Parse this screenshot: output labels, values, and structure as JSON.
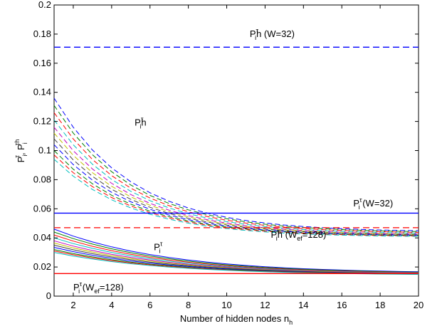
{
  "chart_data": {
    "type": "line",
    "title": "",
    "xlabel": "Number of hidden nodes n",
    "xlabel_sub": "h",
    "ylabel": {
      "a": "P",
      "a_sub": "i",
      "a_sup": "τ",
      "sep": ", ",
      "b": "P",
      "b_sub": "i",
      "b_sup": "τh"
    },
    "xlim": [
      1,
      20
    ],
    "ylim": [
      0,
      0.2
    ],
    "x_ticks": [
      2,
      4,
      6,
      8,
      10,
      12,
      14,
      16,
      18,
      20
    ],
    "y_ticks": [
      0,
      0.02,
      0.04,
      0.06,
      0.08,
      0.1,
      0.12,
      0.14,
      0.16,
      0.18,
      0.2
    ],
    "grid": false,
    "legend": "none",
    "palette": [
      "#0000ff",
      "#008000",
      "#ff0000",
      "#00bfbf",
      "#bf00bf",
      "#bfbf00",
      "#404040"
    ],
    "family_x": [
      1,
      2,
      3,
      4,
      5,
      6,
      7,
      8,
      9,
      10,
      11,
      12,
      13,
      14,
      15,
      16,
      17,
      18,
      19,
      20
    ],
    "families": [
      {
        "name": "Pi^τh",
        "style": "dashed",
        "start": [
          0.136,
          0.131,
          0.126,
          0.121,
          0.116,
          0.112,
          0.108,
          0.104,
          0.1,
          0.097,
          0.094
        ],
        "end": [
          0.044,
          0.0435,
          0.043,
          0.0425,
          0.042,
          0.0418,
          0.0415,
          0.0412,
          0.041,
          0.0408,
          0.0405
        ],
        "k": 0.245
      },
      {
        "name": "Pi^τ",
        "style": "solid",
        "start": [
          0.046,
          0.044,
          0.042,
          0.04,
          0.038,
          0.0365,
          0.035,
          0.0335,
          0.032,
          0.031,
          0.03
        ],
        "end": [
          0.0155,
          0.0153,
          0.0151,
          0.015,
          0.0149,
          0.0148,
          0.0147,
          0.0146,
          0.0145,
          0.0144,
          0.0143
        ],
        "k": 0.17
      }
    ],
    "reference_lines": [
      {
        "name": "Pi^τh (W=32)",
        "y": 0.171,
        "color": "#0000ff",
        "style": "dashed"
      },
      {
        "name": "Pi^τ (W=32)",
        "y": 0.057,
        "color": "#0000ff",
        "style": "solid"
      },
      {
        "name": "Pi^τh (Wef=128)",
        "y": 0.047,
        "color": "#ff0000",
        "style": "dashed"
      },
      {
        "name": "Pi^τ (Wef=128)",
        "y": 0.0155,
        "color": "#ff0000",
        "style": "solid"
      }
    ],
    "annotations": [
      {
        "id": "ann-pth-w32",
        "x": 11.2,
        "y": 0.178,
        "parts": [
          [
            "P",
            ""
          ],
          [
            "τ",
            "sup"
          ],
          [
            "i",
            "sub"
          ],
          [
            "h (W=32)",
            ""
          ]
        ]
      },
      {
        "id": "ann-pth-family",
        "x": 5.2,
        "y": 0.117,
        "parts": [
          [
            "P",
            ""
          ],
          [
            "τ",
            "sup"
          ],
          [
            "i",
            "sub"
          ],
          [
            "h",
            ""
          ]
        ]
      },
      {
        "id": "ann-pt-w32",
        "x": 16.6,
        "y": 0.0615,
        "parts": [
          [
            "P",
            ""
          ],
          [
            "τ",
            "sup"
          ],
          [
            "i",
            "sub"
          ],
          [
            " (W=32)",
            ""
          ]
        ]
      },
      {
        "id": "ann-pth-wef128",
        "x": 12.3,
        "y": 0.04,
        "parts": [
          [
            "P",
            ""
          ],
          [
            "τ",
            "sup"
          ],
          [
            "i",
            "sub"
          ],
          [
            "h (W",
            ""
          ],
          [
            "ef",
            "sub"
          ],
          [
            "=128)",
            ""
          ]
        ]
      },
      {
        "id": "ann-pt-family",
        "x": 6.2,
        "y": 0.0315,
        "parts": [
          [
            "P",
            ""
          ],
          [
            "τ",
            "sup"
          ],
          [
            "i",
            "sub"
          ]
        ]
      },
      {
        "id": "ann-pt-wef128",
        "x": 2.0,
        "y": 0.004,
        "parts": [
          [
            "P",
            ""
          ],
          [
            "τ",
            "sup"
          ],
          [
            "i",
            "sub"
          ],
          [
            " (W",
            ""
          ],
          [
            "ef",
            "sub"
          ],
          [
            "=128)",
            ""
          ]
        ]
      }
    ]
  }
}
